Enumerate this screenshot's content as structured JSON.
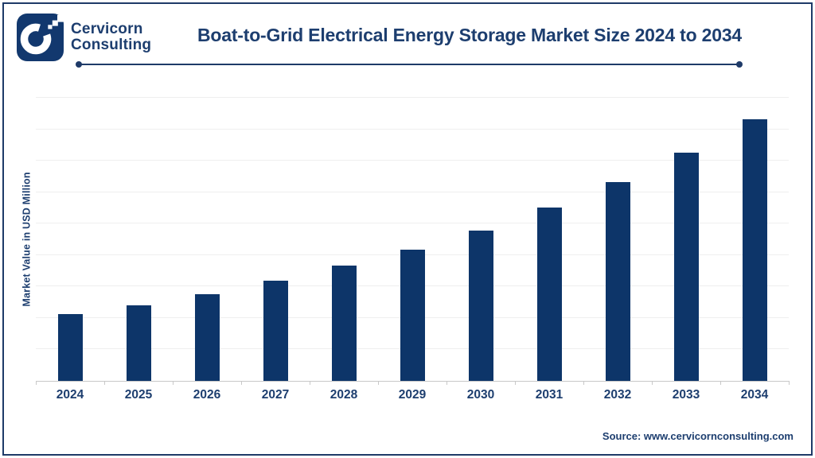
{
  "brand": {
    "line1": "Cervicorn",
    "line2": "Consulting",
    "logo_icon": "cervicorn-c-pixel-logo"
  },
  "header": {
    "title": "Boat-to-Grid Electrical Energy Storage Market Size 2024 to 2034"
  },
  "footer": {
    "source": "Source: www.cervicornconsulting.com"
  },
  "colors": {
    "navy_text": "#1d3e6f",
    "bar": "#0d3569",
    "logo": "#12386e",
    "frame_border": "#1e3a68",
    "gridline": "#efefef",
    "axis": "#c8c8c8"
  },
  "chart_data": {
    "type": "bar",
    "title": "Boat-to-Grid Electrical Energy Storage Market Size 2024 to 2034",
    "categories": [
      "2024",
      "2025",
      "2026",
      "2027",
      "2028",
      "2029",
      "2030",
      "2031",
      "2032",
      "2033",
      "2034"
    ],
    "values": [
      212,
      240,
      276,
      319,
      367,
      417,
      478,
      551,
      632,
      725,
      832
    ],
    "values_estimated_from_bar_heights": true,
    "xlabel": "",
    "ylabel": "Market Value in USD Million",
    "ylim": [
      0,
      900
    ],
    "gridline_interval": 100,
    "y_tick_labels_visible": false,
    "grid": "horizontal",
    "legend": "none"
  }
}
